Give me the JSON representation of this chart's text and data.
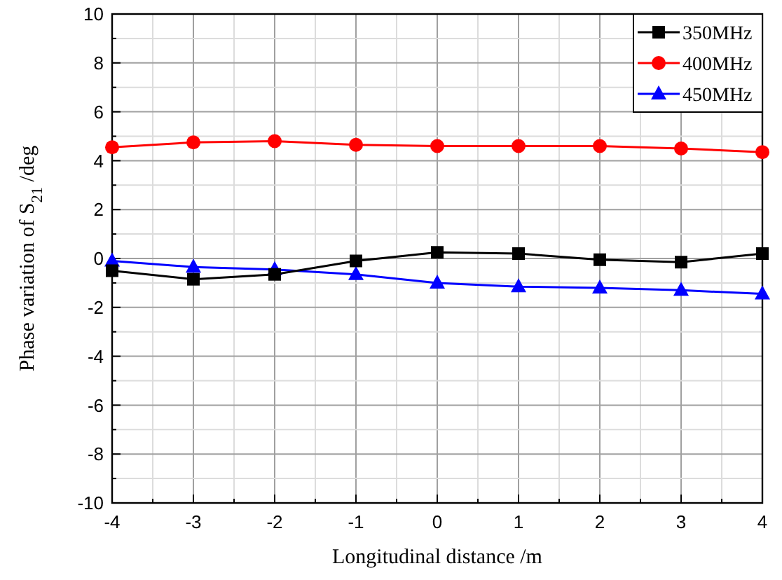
{
  "chart_data": {
    "type": "line",
    "xlabel": "Longitudinal distance /m",
    "ylabel": "Phase variation of S$_{21}$ /deg",
    "x": [
      -4,
      -3,
      -2,
      -1,
      0,
      1,
      2,
      3,
      4
    ],
    "xlim": [
      -4,
      4
    ],
    "ylim": [
      -10,
      10
    ],
    "xticks": [
      -4,
      {
        "value": -3.5,
        "label": null
      },
      -3,
      {
        "value": -2.5,
        "label": null
      },
      -2,
      {
        "value": -1.5,
        "label": null
      },
      -1,
      {
        "value": -0.5,
        "label": null
      },
      0,
      {
        "value": 0.5,
        "label": null
      },
      1,
      {
        "value": 1.5,
        "label": null
      },
      2,
      {
        "value": 2.5,
        "label": null
      },
      3,
      {
        "value": 3.5,
        "label": null
      },
      4
    ],
    "yticks": [
      -10,
      {
        "value": -9,
        "label": null
      },
      -8,
      {
        "value": -7,
        "label": null
      },
      -6,
      {
        "value": -5,
        "label": null
      },
      -4,
      {
        "value": -3,
        "label": null
      },
      -2,
      {
        "value": -1,
        "label": null
      },
      0,
      {
        "value": 1,
        "label": null
      },
      2,
      {
        "value": 3,
        "label": null
      },
      4,
      {
        "value": 5,
        "label": null
      },
      6,
      {
        "value": 7,
        "label": null
      },
      8,
      {
        "value": 9,
        "label": null
      },
      10
    ],
    "grid": true,
    "legend": "top right",
    "line_style": "solid",
    "series": [
      {
        "name": "350MHz",
        "color": "#000000",
        "marker": "square",
        "values": [
          -0.5,
          -0.85,
          -0.65,
          -0.1,
          0.25,
          0.2,
          -0.05,
          -0.15,
          0.2
        ]
      },
      {
        "name": "400MHz",
        "color": "#ff0000",
        "marker": "circle",
        "values": [
          4.55,
          4.75,
          4.8,
          4.65,
          4.6,
          4.6,
          4.6,
          4.5,
          4.35
        ]
      },
      {
        "name": "450MHz",
        "color": "#0000ff",
        "marker": "triangle",
        "values": [
          -0.1,
          -0.35,
          -0.45,
          -0.65,
          -1.0,
          -1.15,
          -1.2,
          -1.3,
          -1.45
        ]
      }
    ]
  }
}
